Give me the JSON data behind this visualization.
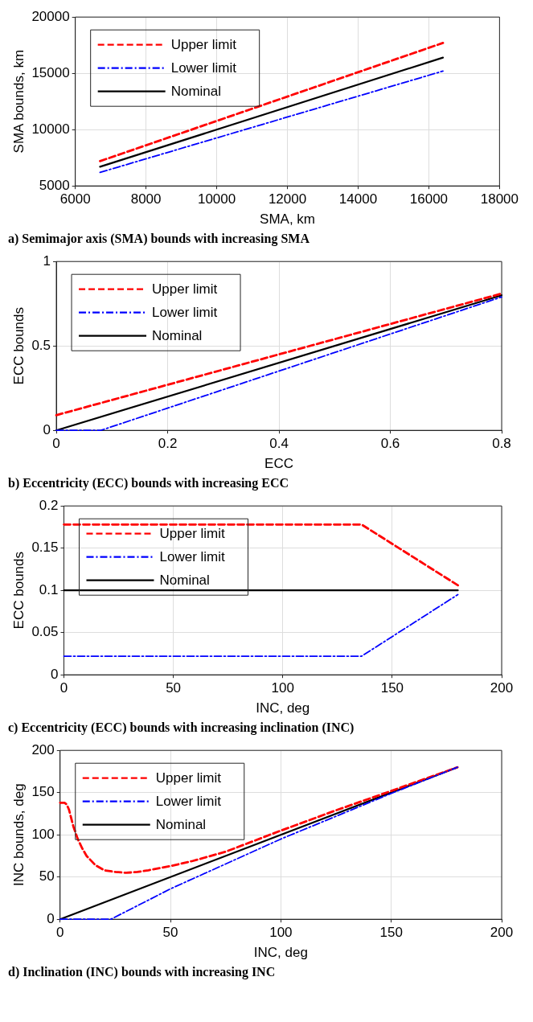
{
  "chart_data": [
    {
      "type": "line",
      "xlabel": "SMA, km",
      "ylabel": "SMA bounds, km",
      "xlim": [
        6000,
        18000
      ],
      "xticks": [
        6000,
        8000,
        10000,
        12000,
        14000,
        16000,
        18000
      ],
      "ylim": [
        5000,
        20000
      ],
      "yticks": [
        5000,
        10000,
        15000,
        20000
      ],
      "grid": true,
      "legend": "top left",
      "annotations": [
        "a) Semimajor axis (SMA) bounds with increasing SMA"
      ],
      "series": [
        {
          "name": "Upper limit",
          "color": "#ff0000",
          "line_style": "dashed",
          "x": [
            6700,
            16400
          ],
          "values": [
            7200,
            17700
          ]
        },
        {
          "name": "Lower limit",
          "color": "#0000ff",
          "line_style": "dashdot",
          "x": [
            6700,
            16400
          ],
          "values": [
            6200,
            15200
          ]
        },
        {
          "name": "Nominal",
          "color": "#000000",
          "line_style": "solid",
          "x": [
            6700,
            16400
          ],
          "values": [
            6700,
            16400
          ]
        }
      ]
    },
    {
      "type": "line",
      "xlabel": "ECC",
      "ylabel": "ECC bounds",
      "xlim": [
        0,
        0.8
      ],
      "xticks": [
        0,
        0.2,
        0.4,
        0.6,
        0.8
      ],
      "ylim": [
        0,
        1
      ],
      "yticks": [
        0,
        0.5,
        1
      ],
      "grid": true,
      "legend": "top left",
      "annotations": [
        "b) Eccentricity (ECC) bounds with increasing ECC"
      ],
      "series": [
        {
          "name": "Upper limit",
          "color": "#ff0000",
          "line_style": "dashed",
          "x": [
            0,
            0.8
          ],
          "values": [
            0.09,
            0.81
          ]
        },
        {
          "name": "Lower limit",
          "color": "#0000ff",
          "line_style": "dashdot",
          "x": [
            0,
            0.08,
            0.8
          ],
          "values": [
            0,
            0,
            0.79
          ]
        },
        {
          "name": "Nominal",
          "color": "#000000",
          "line_style": "solid",
          "x": [
            0,
            0.8
          ],
          "values": [
            0,
            0.8
          ]
        }
      ]
    },
    {
      "type": "line",
      "xlabel": "INC, deg",
      "ylabel": "ECC bounds",
      "xlim": [
        0,
        200
      ],
      "xticks": [
        0,
        50,
        100,
        150,
        200
      ],
      "ylim": [
        0,
        0.2
      ],
      "yticks": [
        0,
        0.05,
        0.1,
        0.15,
        0.2
      ],
      "grid": true,
      "legend": "top left",
      "annotations": [
        "c) Eccentricity (ECC) bounds with increasing inclination (INC)"
      ],
      "series": [
        {
          "name": "Upper limit",
          "color": "#ff0000",
          "line_style": "dashed",
          "x": [
            0,
            136,
            180
          ],
          "values": [
            0.178,
            0.178,
            0.106
          ]
        },
        {
          "name": "Lower limit",
          "color": "#0000ff",
          "line_style": "dashdot",
          "x": [
            0,
            136,
            180
          ],
          "values": [
            0.022,
            0.022,
            0.095
          ]
        },
        {
          "name": "Nominal",
          "color": "#000000",
          "line_style": "solid",
          "x": [
            0,
            180
          ],
          "values": [
            0.1,
            0.1
          ]
        }
      ]
    },
    {
      "type": "line",
      "xlabel": "INC, deg",
      "ylabel": "INC bounds, deg",
      "xlim": [
        0,
        200
      ],
      "xticks": [
        0,
        50,
        100,
        150,
        200
      ],
      "ylim": [
        0,
        200
      ],
      "yticks": [
        0,
        50,
        100,
        150,
        200
      ],
      "grid": true,
      "legend": "top left",
      "annotations": [
        "d) Inclination (INC) bounds with increasing INC"
      ],
      "series": [
        {
          "name": "Upper limit",
          "color": "#ff0000",
          "line_style": "dashed",
          "x": [
            0,
            2,
            3,
            4,
            5,
            6,
            8,
            10,
            12,
            16,
            20,
            25,
            30,
            35,
            40,
            50,
            60,
            75,
            100,
            125,
            150,
            180
          ],
          "values": [
            138,
            138,
            136,
            130,
            120,
            110,
            95,
            84,
            75,
            64,
            58,
            56,
            55,
            56,
            58,
            63,
            69,
            80,
            105,
            129,
            152,
            180
          ]
        },
        {
          "name": "Lower limit",
          "color": "#0000ff",
          "line_style": "dashdot",
          "x": [
            0,
            23,
            50,
            100,
            150,
            180
          ],
          "values": [
            0,
            0,
            36,
            95,
            149,
            180
          ]
        },
        {
          "name": "Nominal",
          "color": "#000000",
          "line_style": "solid",
          "x": [
            0,
            180
          ],
          "values": [
            0,
            180
          ]
        }
      ]
    }
  ]
}
